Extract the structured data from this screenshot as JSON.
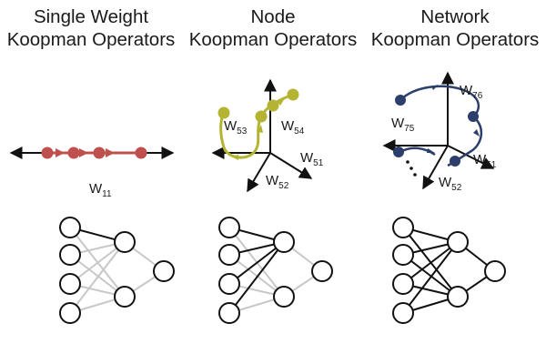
{
  "panels": [
    {
      "title_line1": "Single Weight",
      "title_line2": "Koopman Operators",
      "axis_labels": [
        "W",
        "11"
      ]
    },
    {
      "title_line1": "Node",
      "title_line2": "Koopman Operators",
      "axis_labels": {
        "w53": [
          "W",
          "53"
        ],
        "w54": [
          "W",
          "54"
        ],
        "w51": [
          "W",
          "51"
        ],
        "w52": [
          "W",
          "52"
        ]
      }
    },
    {
      "title_line1": "Network",
      "title_line2": "Koopman Operators",
      "axis_labels": {
        "w76": [
          "W",
          "76"
        ],
        "w75": [
          "W",
          "75"
        ],
        "w51": [
          "W",
          "51"
        ],
        "w52": [
          "W",
          "52"
        ]
      }
    }
  ],
  "colors": {
    "single_trajectory": "#c0504d",
    "node_trajectory": "#b5b332",
    "network_trajectory": "#2c3e6b",
    "highlight_edge": "#111111",
    "faded_edge": "#c8c8c8"
  }
}
